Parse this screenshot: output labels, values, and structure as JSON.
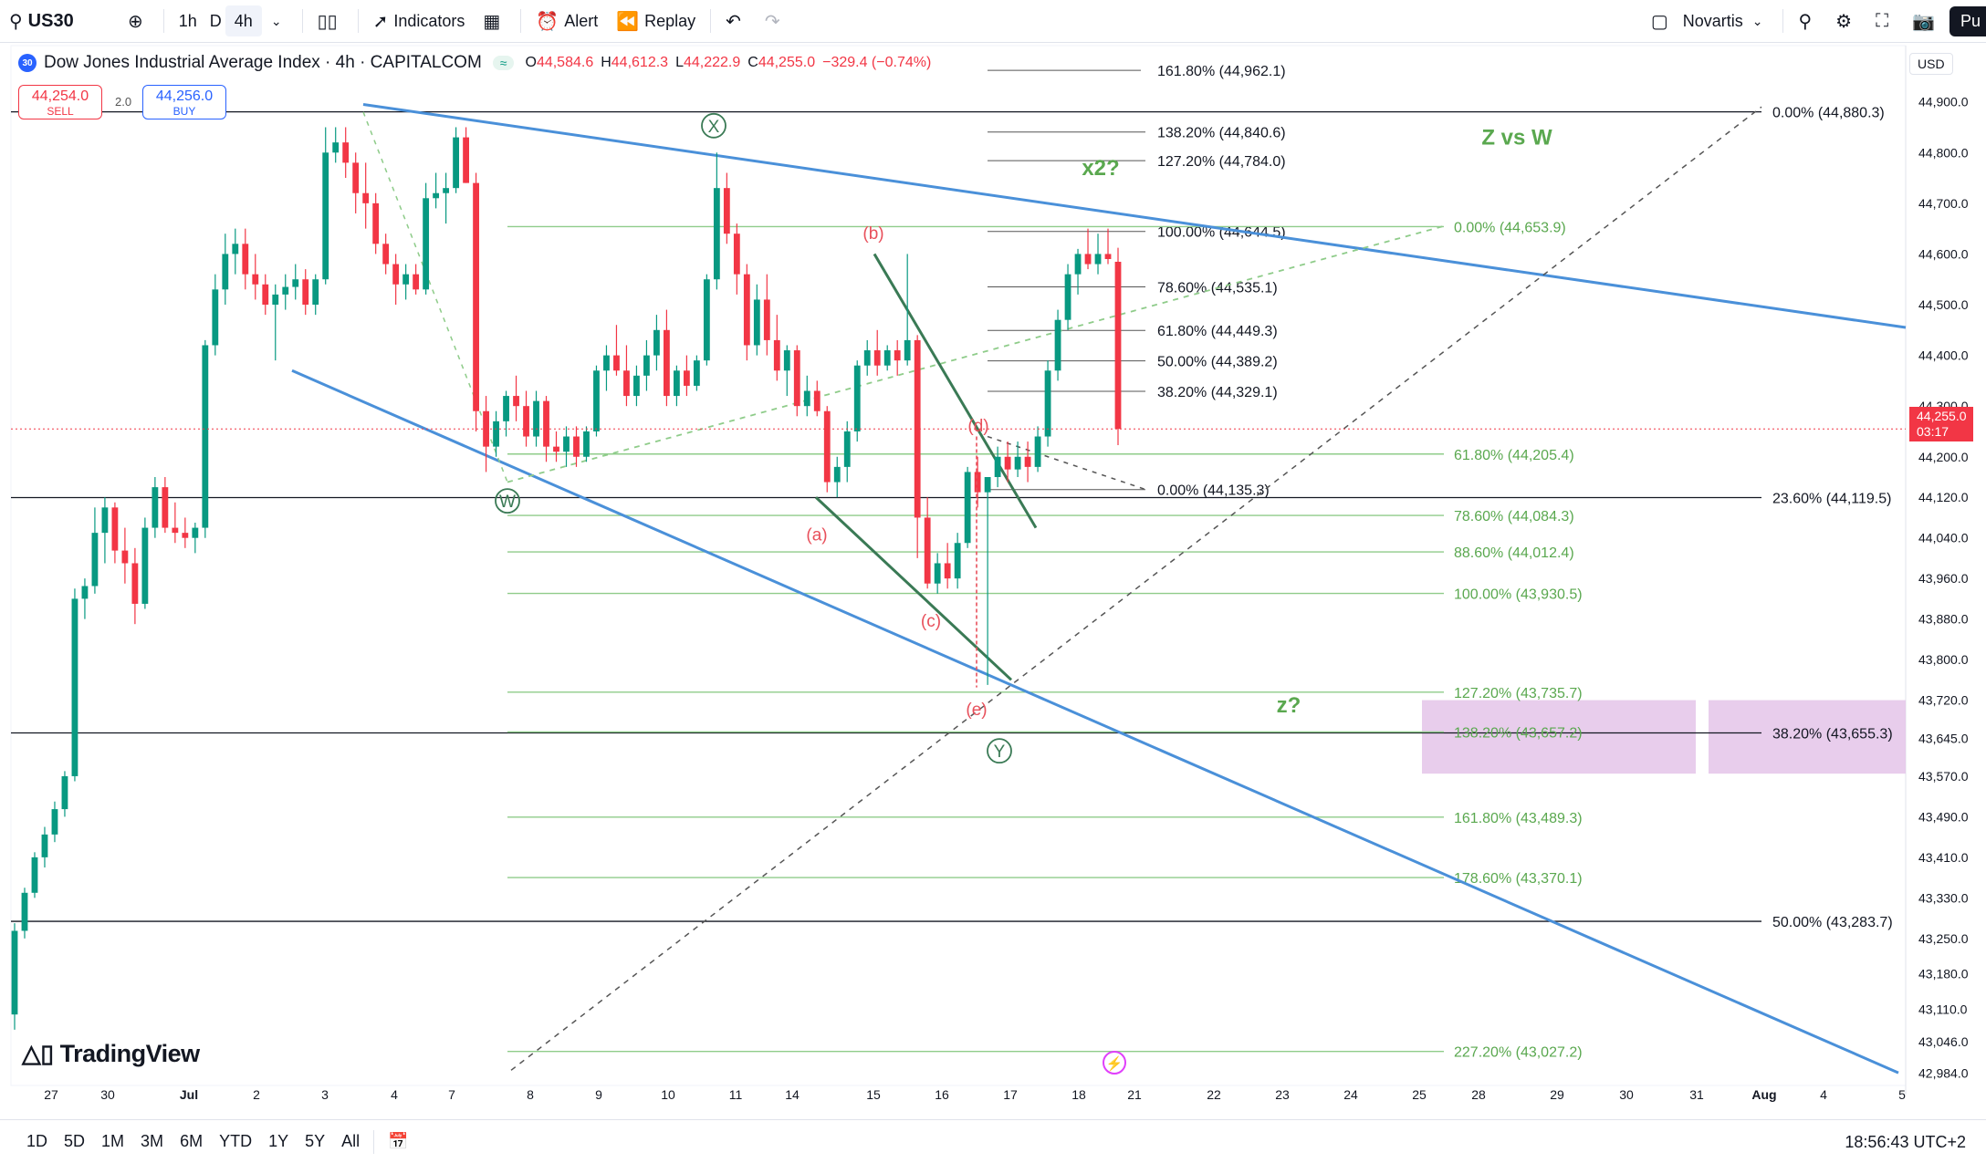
{
  "toolbar": {
    "symbol": "US30",
    "intervals": [
      "1h",
      "D",
      "4h"
    ],
    "indicators_label": "Indicators",
    "alert_label": "Alert",
    "replay_label": "Replay",
    "watchlist_label": "Novartis",
    "publish_label": "Pu"
  },
  "legend": {
    "badge": "30",
    "title": "Dow Jones Industrial Average Index · 4h · CAPITALCOM",
    "live_icon": "≈",
    "ohlc": {
      "o": "44,584.6",
      "h": "44,612.3",
      "l": "44,222.9",
      "c": "44,255.0",
      "change": "−329.4 (−0.74%)"
    },
    "sell_price": "44,254.0",
    "sell_label": "SELL",
    "buy_price": "44,256.0",
    "buy_label": "BUY",
    "spread": "2.0"
  },
  "price_axis": {
    "currency": "USD",
    "current_price": "44,255.0",
    "countdown": "03:17"
  },
  "bottombar": {
    "ranges": [
      "1D",
      "5D",
      "1M",
      "3M",
      "6M",
      "YTD",
      "1Y",
      "5Y",
      "All"
    ],
    "clock": "18:56:43 UTC+2"
  },
  "branding": {
    "logo_text": "TradingView"
  },
  "colors": {
    "up": "#089981",
    "down": "#f23645",
    "trendline": "#4a90d9",
    "fib_green": "#8fcc8a",
    "fib_black": "#131722",
    "label_green": "#5aa84f",
    "wave_red": "#e8505b",
    "zone": "#e6c8ea"
  },
  "chart_data": {
    "type": "candlestick",
    "symbol": "US30",
    "timeframe": "4h",
    "ylim": [
      42960,
      44930
    ],
    "y_ticks": [
      "44,900.0",
      "44,800.0",
      "44,700.0",
      "44,600.0",
      "44,500.0",
      "44,400.0",
      "44,300.0",
      "44,200.0",
      "44,120.0",
      "44,040.0",
      "43,960.0",
      "43,880.0",
      "43,800.0",
      "43,720.0",
      "43,645.0",
      "43,570.0",
      "43,490.0",
      "43,410.0",
      "43,330.0",
      "43,250.0",
      "43,180.0",
      "43,110.0",
      "43,046.0",
      "42,984.0"
    ],
    "x_ticks": [
      "27",
      "30",
      "Jul",
      "2",
      "3",
      "4",
      "7",
      "8",
      "9",
      "10",
      "11",
      "14",
      "15",
      "16",
      "17",
      "18",
      "21",
      "22",
      "23",
      "24",
      "25",
      "28",
      "29",
      "30",
      "31",
      "Aug",
      "4",
      "5"
    ],
    "candles": [
      [
        43100,
        43280,
        43070,
        43265
      ],
      [
        43265,
        43350,
        43250,
        43340
      ],
      [
        43340,
        43420,
        43330,
        43410
      ],
      [
        43410,
        43470,
        43390,
        43455
      ],
      [
        43455,
        43520,
        43440,
        43505
      ],
      [
        43505,
        43580,
        43490,
        43570
      ],
      [
        43570,
        43940,
        43560,
        43920
      ],
      [
        43920,
        43960,
        43880,
        43945
      ],
      [
        43945,
        44100,
        43930,
        44050
      ],
      [
        44050,
        44120,
        43990,
        44100
      ],
      [
        44100,
        44110,
        43990,
        44015
      ],
      [
        44015,
        44060,
        43950,
        43990
      ],
      [
        43990,
        44020,
        43870,
        43910
      ],
      [
        43910,
        44080,
        43900,
        44060
      ],
      [
        44060,
        44160,
        44040,
        44140
      ],
      [
        44140,
        44160,
        44050,
        44060
      ],
      [
        44060,
        44110,
        44030,
        44050
      ],
      [
        44050,
        44080,
        44020,
        44040
      ],
      [
        44040,
        44070,
        44010,
        44060
      ],
      [
        44060,
        44430,
        44040,
        44420
      ],
      [
        44420,
        44560,
        44400,
        44530
      ],
      [
        44530,
        44640,
        44500,
        44600
      ],
      [
        44600,
        44650,
        44560,
        44620
      ],
      [
        44620,
        44650,
        44530,
        44560
      ],
      [
        44560,
        44600,
        44510,
        44540
      ],
      [
        44540,
        44560,
        44480,
        44500
      ],
      [
        44500,
        44540,
        44390,
        44520
      ],
      [
        44520,
        44560,
        44490,
        44535
      ],
      [
        44535,
        44580,
        44510,
        44550
      ],
      [
        44550,
        44570,
        44480,
        44500
      ],
      [
        44500,
        44560,
        44480,
        44550
      ],
      [
        44550,
        44850,
        44540,
        44800
      ],
      [
        44800,
        44850,
        44780,
        44820
      ],
      [
        44820,
        44850,
        44750,
        44780
      ],
      [
        44780,
        44800,
        44680,
        44720
      ],
      [
        44720,
        44780,
        44650,
        44700
      ],
      [
        44700,
        44720,
        44600,
        44620
      ],
      [
        44620,
        44640,
        44560,
        44580
      ],
      [
        44580,
        44600,
        44500,
        44540
      ],
      [
        44540,
        44580,
        44510,
        44560
      ],
      [
        44560,
        44580,
        44520,
        44530
      ],
      [
        44530,
        44740,
        44520,
        44710
      ],
      [
        44710,
        44760,
        44690,
        44720
      ],
      [
        44720,
        44760,
        44660,
        44730
      ],
      [
        44730,
        44850,
        44720,
        44830
      ],
      [
        44830,
        44850,
        44740,
        44740
      ],
      [
        44740,
        44760,
        44250,
        44290
      ],
      [
        44290,
        44320,
        44170,
        44220
      ],
      [
        44220,
        44290,
        44200,
        44270
      ],
      [
        44270,
        44330,
        44240,
        44320
      ],
      [
        44320,
        44360,
        44270,
        44300
      ],
      [
        44300,
        44330,
        44220,
        44240
      ],
      [
        44240,
        44330,
        44220,
        44310
      ],
      [
        44310,
        44320,
        44190,
        44220
      ],
      [
        44220,
        44250,
        44190,
        44210
      ],
      [
        44210,
        44260,
        44180,
        44240
      ],
      [
        44240,
        44260,
        44180,
        44200
      ],
      [
        44200,
        44260,
        44190,
        44250
      ],
      [
        44250,
        44380,
        44240,
        44370
      ],
      [
        44370,
        44420,
        44330,
        44400
      ],
      [
        44400,
        44460,
        44360,
        44370
      ],
      [
        44370,
        44420,
        44300,
        44320
      ],
      [
        44320,
        44380,
        44300,
        44360
      ],
      [
        44360,
        44430,
        44330,
        44400
      ],
      [
        44400,
        44480,
        44370,
        44450
      ],
      [
        44450,
        44490,
        44300,
        44320
      ],
      [
        44320,
        44380,
        44300,
        44370
      ],
      [
        44370,
        44400,
        44320,
        44340
      ],
      [
        44340,
        44400,
        44330,
        44390
      ],
      [
        44390,
        44560,
        44380,
        44550
      ],
      [
        44550,
        44800,
        44530,
        44730
      ],
      [
        44730,
        44760,
        44620,
        44640
      ],
      [
        44640,
        44660,
        44520,
        44560
      ],
      [
        44560,
        44580,
        44390,
        44420
      ],
      [
        44420,
        44540,
        44400,
        44510
      ],
      [
        44510,
        44560,
        44400,
        44430
      ],
      [
        44430,
        44480,
        44350,
        44370
      ],
      [
        44370,
        44420,
        44320,
        44410
      ],
      [
        44410,
        44420,
        44280,
        44300
      ],
      [
        44300,
        44360,
        44280,
        44330
      ],
      [
        44330,
        44350,
        44280,
        44290
      ],
      [
        44290,
        44300,
        44130,
        44150
      ],
      [
        44150,
        44200,
        44120,
        44180
      ],
      [
        44180,
        44270,
        44150,
        44250
      ],
      [
        44250,
        44390,
        44230,
        44380
      ],
      [
        44380,
        44430,
        44360,
        44410
      ],
      [
        44410,
        44450,
        44360,
        44380
      ],
      [
        44380,
        44420,
        44370,
        44410
      ],
      [
        44410,
        44430,
        44360,
        44390
      ],
      [
        44390,
        44600,
        44380,
        44430
      ],
      [
        44430,
        44440,
        44000,
        44080
      ],
      [
        44080,
        44120,
        43940,
        43950
      ],
      [
        43950,
        44010,
        43930,
        43990
      ],
      [
        43990,
        44030,
        43940,
        43960
      ],
      [
        43960,
        44050,
        43940,
        44030
      ],
      [
        44030,
        44180,
        44020,
        44170
      ],
      [
        44170,
        44200,
        44100,
        44130
      ],
      [
        44130,
        44160,
        43750,
        44160
      ],
      [
        44160,
        44220,
        44140,
        44200
      ],
      [
        44200,
        44230,
        44150,
        44175
      ],
      [
        44175,
        44230,
        44160,
        44200
      ],
      [
        44200,
        44230,
        44150,
        44180
      ],
      [
        44180,
        44260,
        44170,
        44240
      ],
      [
        44240,
        44390,
        44220,
        44370
      ],
      [
        44370,
        44490,
        44350,
        44470
      ],
      [
        44470,
        44580,
        44450,
        44560
      ],
      [
        44560,
        44610,
        44520,
        44600
      ],
      [
        44600,
        44650,
        44570,
        44580
      ],
      [
        44580,
        44640,
        44560,
        44600
      ],
      [
        44600,
        44650,
        44580,
        44590
      ],
      [
        44584.6,
        44612.3,
        44222.9,
        44255.0
      ]
    ],
    "fib_right": [
      {
        "label": "0.00% (44,880.3)",
        "price": 44880.3
      },
      {
        "label": "23.60% (44,119.5)",
        "price": 44119.5
      },
      {
        "label": "38.20% (43,655.3)",
        "price": 43655.3
      },
      {
        "label": "50.00% (43,283.7)",
        "price": 43283.7
      }
    ],
    "fib_mid": [
      {
        "label": "161.80% (44,962.1)",
        "price": 44962.1
      },
      {
        "label": "138.20% (44,840.6)",
        "price": 44840.6
      },
      {
        "label": "127.20% (44,784.0)",
        "price": 44784.0
      },
      {
        "label": "100.00% (44,644.5)",
        "price": 44644.5
      },
      {
        "label": "78.60% (44,535.1)",
        "price": 44535.1
      },
      {
        "label": "61.80% (44,449.3)",
        "price": 44449.3
      },
      {
        "label": "50.00% (44,389.2)",
        "price": 44389.2
      },
      {
        "label": "38.20% (44,329.1)",
        "price": 44329.1
      },
      {
        "label": "0.00% (44,135.3)",
        "price": 44135.3
      }
    ],
    "fib_green": [
      {
        "label": "0.00% (44,653.9)",
        "price": 44653.9
      },
      {
        "label": "61.80% (44,205.4)",
        "price": 44205.4
      },
      {
        "label": "78.60% (44,084.3)",
        "price": 44084.3
      },
      {
        "label": "88.60% (44,012.4)",
        "price": 44012.4
      },
      {
        "label": "100.00% (43,930.5)",
        "price": 43930.5
      },
      {
        "label": "127.20% (43,735.7)",
        "price": 43735.7
      },
      {
        "label": "138.20% (43,657.2)",
        "price": 43657.2
      },
      {
        "label": "161.80% (43,489.3)",
        "price": 43489.3
      },
      {
        "label": "178.60% (43,370.1)",
        "price": 43370.1
      },
      {
        "label": "227.20% (43,027.2)",
        "price": 43027.2
      }
    ],
    "annotations": {
      "circled": [
        "X",
        "W",
        "Y"
      ],
      "waves": [
        "(a)",
        "(b)",
        "(c)",
        "(d)",
        "(e)"
      ],
      "notes": [
        "x2?",
        "Z vs W",
        "z?"
      ]
    }
  }
}
